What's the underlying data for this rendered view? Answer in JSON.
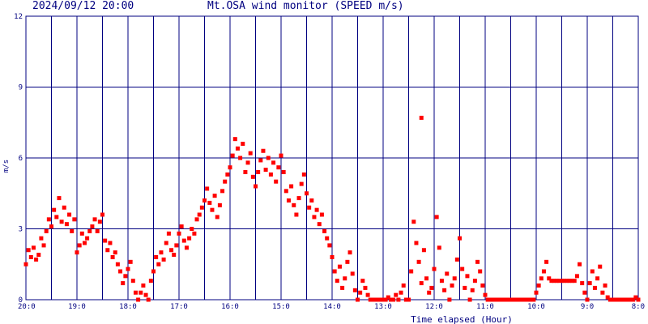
{
  "header": {
    "timestamp": "2024/09/12 20:00",
    "title": "Mt.OSA wind monitor (SPEED m/s)"
  },
  "colors": {
    "axis": "#000080",
    "grid": "#000080",
    "points": "#ff0000",
    "background": "#ffffff"
  },
  "chart_data": {
    "type": "scatter",
    "title": "Mt.OSA wind monitor (SPEED m/s)",
    "xlabel": "Time elapsed (Hour)",
    "ylabel": "m/s",
    "xlim": [
      0,
      12
    ],
    "ylim": [
      0,
      12
    ],
    "grid": true,
    "y_ticks": [
      0,
      3,
      6,
      9,
      12
    ],
    "y_tick_labels": [
      "0",
      "3",
      "6",
      "9",
      "12"
    ],
    "x_ticks": [
      0,
      1,
      2,
      3,
      4,
      5,
      6,
      7,
      8,
      9,
      10,
      11,
      12
    ],
    "x_tick_labels": [
      "20:0",
      "19:0",
      "18:0",
      "17:0",
      "16:0",
      "15:0",
      "14:0",
      "13:0",
      "12:0",
      "11:0",
      "10:0",
      "9:0",
      "8:0"
    ],
    "series": [
      {
        "values": [
          [
            0.0,
            1.5
          ],
          [
            0.05,
            2.1
          ],
          [
            0.1,
            1.8
          ],
          [
            0.15,
            2.2
          ],
          [
            0.2,
            1.7
          ],
          [
            0.25,
            1.9
          ],
          [
            0.3,
            2.6
          ],
          [
            0.35,
            2.3
          ],
          [
            0.4,
            2.9
          ],
          [
            0.45,
            3.4
          ],
          [
            0.5,
            3.1
          ],
          [
            0.55,
            3.8
          ],
          [
            0.6,
            3.5
          ],
          [
            0.65,
            4.3
          ],
          [
            0.7,
            3.3
          ],
          [
            0.75,
            3.9
          ],
          [
            0.8,
            3.2
          ],
          [
            0.85,
            3.6
          ],
          [
            0.9,
            2.9
          ],
          [
            0.95,
            3.4
          ],
          [
            1.0,
            2.0
          ],
          [
            1.05,
            2.3
          ],
          [
            1.1,
            2.8
          ],
          [
            1.15,
            2.4
          ],
          [
            1.2,
            2.6
          ],
          [
            1.25,
            2.9
          ],
          [
            1.3,
            3.1
          ],
          [
            1.35,
            3.4
          ],
          [
            1.4,
            2.9
          ],
          [
            1.45,
            3.3
          ],
          [
            1.5,
            3.6
          ],
          [
            1.55,
            2.5
          ],
          [
            1.6,
            2.1
          ],
          [
            1.65,
            2.4
          ],
          [
            1.7,
            1.8
          ],
          [
            1.75,
            2.0
          ],
          [
            1.8,
            1.5
          ],
          [
            1.85,
            1.2
          ],
          [
            1.9,
            0.7
          ],
          [
            1.95,
            1.0
          ],
          [
            2.0,
            1.3
          ],
          [
            2.05,
            1.6
          ],
          [
            2.1,
            0.8
          ],
          [
            2.15,
            0.3
          ],
          [
            2.2,
            0.0
          ],
          [
            2.25,
            0.3
          ],
          [
            2.3,
            0.6
          ],
          [
            2.35,
            0.2
          ],
          [
            2.4,
            0.0
          ],
          [
            2.45,
            0.8
          ],
          [
            2.5,
            1.2
          ],
          [
            2.55,
            1.8
          ],
          [
            2.6,
            1.5
          ],
          [
            2.65,
            2.0
          ],
          [
            2.7,
            1.7
          ],
          [
            2.75,
            2.4
          ],
          [
            2.8,
            2.8
          ],
          [
            2.85,
            2.1
          ],
          [
            2.9,
            1.9
          ],
          [
            2.95,
            2.3
          ],
          [
            3.0,
            2.8
          ],
          [
            3.05,
            3.1
          ],
          [
            3.1,
            2.5
          ],
          [
            3.15,
            2.2
          ],
          [
            3.2,
            2.6
          ],
          [
            3.25,
            3.0
          ],
          [
            3.3,
            2.8
          ],
          [
            3.35,
            3.4
          ],
          [
            3.4,
            3.6
          ],
          [
            3.45,
            3.9
          ],
          [
            3.5,
            4.2
          ],
          [
            3.55,
            4.7
          ],
          [
            3.6,
            4.1
          ],
          [
            3.65,
            3.8
          ],
          [
            3.7,
            4.4
          ],
          [
            3.75,
            3.5
          ],
          [
            3.8,
            4.0
          ],
          [
            3.85,
            4.6
          ],
          [
            3.9,
            5.0
          ],
          [
            3.95,
            5.3
          ],
          [
            4.0,
            5.6
          ],
          [
            4.05,
            6.1
          ],
          [
            4.1,
            6.8
          ],
          [
            4.15,
            6.4
          ],
          [
            4.2,
            6.0
          ],
          [
            4.25,
            6.6
          ],
          [
            4.3,
            5.4
          ],
          [
            4.35,
            5.8
          ],
          [
            4.4,
            6.2
          ],
          [
            4.45,
            5.2
          ],
          [
            4.5,
            4.8
          ],
          [
            4.55,
            5.4
          ],
          [
            4.6,
            5.9
          ],
          [
            4.65,
            6.3
          ],
          [
            4.7,
            5.5
          ],
          [
            4.75,
            6.0
          ],
          [
            4.8,
            5.3
          ],
          [
            4.85,
            5.8
          ],
          [
            4.9,
            5.0
          ],
          [
            4.95,
            5.6
          ],
          [
            5.0,
            6.1
          ],
          [
            5.05,
            5.4
          ],
          [
            5.1,
            4.6
          ],
          [
            5.15,
            4.2
          ],
          [
            5.2,
            4.8
          ],
          [
            5.25,
            4.0
          ],
          [
            5.3,
            3.6
          ],
          [
            5.35,
            4.3
          ],
          [
            5.4,
            4.9
          ],
          [
            5.45,
            5.3
          ],
          [
            5.5,
            4.5
          ],
          [
            5.55,
            3.9
          ],
          [
            5.6,
            4.2
          ],
          [
            5.65,
            3.5
          ],
          [
            5.7,
            3.8
          ],
          [
            5.75,
            3.2
          ],
          [
            5.8,
            3.6
          ],
          [
            5.85,
            2.9
          ],
          [
            5.9,
            2.6
          ],
          [
            5.95,
            2.3
          ],
          [
            6.0,
            1.8
          ],
          [
            6.05,
            1.2
          ],
          [
            6.1,
            0.8
          ],
          [
            6.15,
            1.4
          ],
          [
            6.2,
            0.5
          ],
          [
            6.25,
            0.9
          ],
          [
            6.3,
            1.6
          ],
          [
            6.35,
            2.0
          ],
          [
            6.4,
            1.1
          ],
          [
            6.45,
            0.4
          ],
          [
            6.5,
            0.0
          ],
          [
            6.55,
            0.3
          ],
          [
            6.6,
            0.8
          ],
          [
            6.65,
            0.5
          ],
          [
            6.7,
            0.2
          ],
          [
            6.75,
            0.0
          ],
          [
            6.8,
            0.0
          ],
          [
            6.85,
            0.0
          ],
          [
            6.9,
            0.0
          ],
          [
            6.95,
            0.0
          ],
          [
            7.0,
            0.0
          ],
          [
            7.05,
            0.0
          ],
          [
            7.1,
            0.1
          ],
          [
            7.15,
            0.0
          ],
          [
            7.2,
            0.0
          ],
          [
            7.25,
            0.2
          ],
          [
            7.3,
            0.0
          ],
          [
            7.35,
            0.3
          ],
          [
            7.4,
            0.6
          ],
          [
            7.45,
            0.0
          ],
          [
            7.5,
            0.0
          ],
          [
            7.55,
            1.2
          ],
          [
            7.6,
            3.3
          ],
          [
            7.65,
            2.4
          ],
          [
            7.7,
            1.6
          ],
          [
            7.75,
            0.7
          ],
          [
            7.8,
            2.1
          ],
          [
            7.85,
            0.9
          ],
          [
            7.9,
            0.3
          ],
          [
            7.95,
            0.5
          ],
          [
            7.75,
            7.7
          ],
          [
            8.0,
            1.3
          ],
          [
            8.05,
            3.5
          ],
          [
            8.1,
            2.2
          ],
          [
            8.15,
            0.8
          ],
          [
            8.2,
            0.4
          ],
          [
            8.25,
            1.1
          ],
          [
            8.3,
            0.0
          ],
          [
            8.35,
            0.6
          ],
          [
            8.4,
            0.9
          ],
          [
            8.45,
            1.7
          ],
          [
            8.5,
            2.6
          ],
          [
            8.55,
            1.3
          ],
          [
            8.6,
            0.5
          ],
          [
            8.65,
            1.0
          ],
          [
            8.7,
            0.0
          ],
          [
            8.75,
            0.4
          ],
          [
            8.8,
            0.8
          ],
          [
            8.85,
            1.6
          ],
          [
            8.9,
            1.2
          ],
          [
            8.95,
            0.6
          ],
          [
            9.0,
            0.2
          ],
          [
            9.05,
            0.0
          ],
          [
            9.1,
            0.0
          ],
          [
            9.15,
            0.0
          ],
          [
            9.2,
            0.0
          ],
          [
            9.25,
            0.0
          ],
          [
            9.3,
            0.0
          ],
          [
            9.35,
            0.0
          ],
          [
            9.4,
            0.0
          ],
          [
            9.45,
            0.0
          ],
          [
            9.5,
            0.0
          ],
          [
            9.55,
            0.0
          ],
          [
            9.6,
            0.0
          ],
          [
            9.65,
            0.0
          ],
          [
            9.7,
            0.0
          ],
          [
            9.75,
            0.0
          ],
          [
            9.8,
            0.0
          ],
          [
            9.85,
            0.0
          ],
          [
            9.9,
            0.0
          ],
          [
            9.95,
            0.0
          ],
          [
            10.0,
            0.3
          ],
          [
            10.05,
            0.6
          ],
          [
            10.1,
            0.9
          ],
          [
            10.15,
            1.2
          ],
          [
            10.2,
            1.6
          ],
          [
            10.25,
            0.9
          ],
          [
            10.3,
            0.8
          ],
          [
            10.35,
            0.8
          ],
          [
            10.4,
            0.8
          ],
          [
            10.45,
            0.8
          ],
          [
            10.5,
            0.8
          ],
          [
            10.55,
            0.8
          ],
          [
            10.6,
            0.8
          ],
          [
            10.65,
            0.8
          ],
          [
            10.7,
            0.8
          ],
          [
            10.75,
            0.8
          ],
          [
            10.8,
            1.0
          ],
          [
            10.85,
            1.5
          ],
          [
            10.9,
            0.7
          ],
          [
            10.95,
            0.3
          ],
          [
            11.0,
            0.0
          ],
          [
            11.05,
            0.7
          ],
          [
            11.1,
            1.2
          ],
          [
            11.15,
            0.5
          ],
          [
            11.2,
            0.9
          ],
          [
            11.25,
            1.4
          ],
          [
            11.3,
            0.3
          ],
          [
            11.35,
            0.6
          ],
          [
            11.4,
            0.1
          ],
          [
            11.45,
            0.0
          ],
          [
            11.5,
            0.0
          ],
          [
            11.55,
            0.0
          ],
          [
            11.6,
            0.0
          ],
          [
            11.65,
            0.0
          ],
          [
            11.7,
            0.0
          ],
          [
            11.75,
            0.0
          ],
          [
            11.8,
            0.0
          ],
          [
            11.85,
            0.0
          ],
          [
            11.9,
            0.0
          ],
          [
            11.95,
            0.1
          ],
          [
            12.0,
            0.0
          ]
        ]
      }
    ]
  }
}
